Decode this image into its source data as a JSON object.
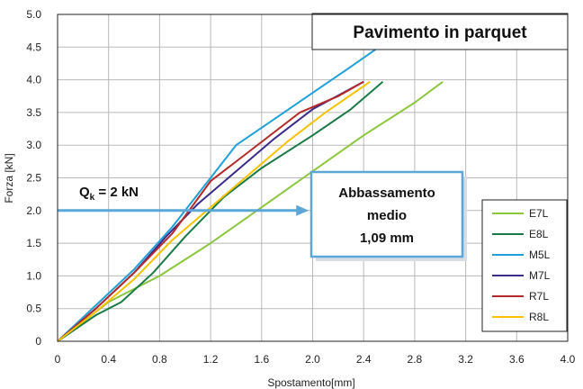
{
  "chart_data": {
    "type": "line",
    "title": "Pavimento in parquet",
    "xlabel": "Spostamento[mm]",
    "ylabel": "Forza [kN]",
    "xlim": [
      0,
      4.0
    ],
    "ylim": [
      0,
      5.0
    ],
    "xticks": [
      "0",
      "0.4",
      "0.8",
      "1.2",
      "1.6",
      "2.0",
      "2.4",
      "2.8",
      "3.2",
      "3.6",
      "4.0"
    ],
    "yticks": [
      "0",
      "0.5",
      "1.0",
      "1.5",
      "2.0",
      "2.5",
      "3.0",
      "3.5",
      "4.0",
      "4.5",
      "5.0"
    ],
    "grid": true,
    "legend_position": "bottom-right",
    "series": [
      {
        "name": "E7L",
        "color": "#8cc63f",
        "points": [
          [
            0,
            0
          ],
          [
            0.4,
            0.6
          ],
          [
            0.8,
            1.0
          ],
          [
            1.2,
            1.5
          ],
          [
            1.6,
            2.05
          ],
          [
            2.0,
            2.6
          ],
          [
            2.4,
            3.15
          ],
          [
            2.8,
            3.65
          ],
          [
            3.02,
            3.97
          ]
        ]
      },
      {
        "name": "E8L",
        "color": "#1a7a45",
        "points": [
          [
            0,
            0
          ],
          [
            0.3,
            0.4
          ],
          [
            0.5,
            0.6
          ],
          [
            0.75,
            1.05
          ],
          [
            1.0,
            1.6
          ],
          [
            1.3,
            2.2
          ],
          [
            1.6,
            2.65
          ],
          [
            2.0,
            3.15
          ],
          [
            2.3,
            3.55
          ],
          [
            2.55,
            3.97
          ]
        ]
      },
      {
        "name": "M5L",
        "color": "#1fa0d8",
        "points": [
          [
            0,
            0
          ],
          [
            0.3,
            0.55
          ],
          [
            0.6,
            1.1
          ],
          [
            0.9,
            1.75
          ],
          [
            1.2,
            2.5
          ],
          [
            1.4,
            3.0
          ],
          [
            1.7,
            3.4
          ],
          [
            2.0,
            3.8
          ],
          [
            2.3,
            4.2
          ],
          [
            2.52,
            4.5
          ]
        ]
      },
      {
        "name": "M7L",
        "color": "#3b2a8a",
        "points": [
          [
            0,
            0
          ],
          [
            0.3,
            0.5
          ],
          [
            0.6,
            1.05
          ],
          [
            0.85,
            1.6
          ],
          [
            1.1,
            2.1
          ],
          [
            1.4,
            2.6
          ],
          [
            1.7,
            3.1
          ],
          [
            2.0,
            3.55
          ],
          [
            2.4,
            3.97
          ]
        ]
      },
      {
        "name": "R7L",
        "color": "#b22a2a",
        "points": [
          [
            0,
            0
          ],
          [
            0.3,
            0.5
          ],
          [
            0.6,
            1.05
          ],
          [
            0.9,
            1.65
          ],
          [
            1.2,
            2.45
          ],
          [
            1.5,
            2.9
          ],
          [
            1.9,
            3.5
          ],
          [
            2.2,
            3.75
          ],
          [
            2.4,
            3.97
          ]
        ]
      },
      {
        "name": "R8L",
        "color": "#f8c200",
        "points": [
          [
            0,
            0
          ],
          [
            0.3,
            0.45
          ],
          [
            0.6,
            0.95
          ],
          [
            0.9,
            1.55
          ],
          [
            1.2,
            2.05
          ],
          [
            1.5,
            2.55
          ],
          [
            1.8,
            3.05
          ],
          [
            2.1,
            3.5
          ],
          [
            2.45,
            3.97
          ]
        ]
      }
    ],
    "annotations": {
      "qk_main": "Q",
      "qk_sub": "k",
      "qk_rest": " = 2 kN",
      "qk_level": 2.0,
      "qk_arrow_end_x": 1.97,
      "box_lines": [
        "Abbassamento",
        "medio",
        "1,09 mm"
      ]
    },
    "colors": {
      "grid": "#b9b9b9",
      "arrow": "#5ba7d8",
      "box_border": "#5ba7d8",
      "box_fill": "#ffffff",
      "axis": "#222222"
    }
  }
}
